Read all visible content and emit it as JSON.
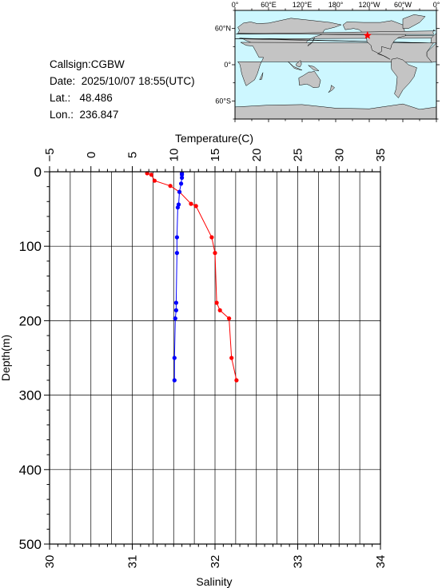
{
  "station": {
    "callsign_text": "Callsign:CGBW",
    "date_text": "Date:  2025/10/07 18:55(UTC)",
    "lat_text": "Lat.:   48.486",
    "lon_text": "Lon.:  236.847"
  },
  "map": {
    "top_lon_labels": [
      "0°",
      "60°E",
      "120°E",
      "180°",
      "120°W",
      "60°W",
      "0°"
    ],
    "left_lat_labels": [
      "60°N",
      "0°",
      "60°S"
    ],
    "ocean_color": "#cdf7ff",
    "land_color": "#c4c4c4",
    "marker": {
      "type": "red-star",
      "lon": 236.847,
      "lat": 48.486,
      "color": "#ff0000"
    }
  },
  "chart_data": {
    "type": "line",
    "title": "",
    "ylabel": "Depth(m)",
    "ylim": [
      0,
      500
    ],
    "y_inverted": true,
    "y_ticks": [
      0,
      100,
      200,
      300,
      400,
      500
    ],
    "y_tick_labels": [
      "0",
      "100",
      "200",
      "300",
      "400",
      "500"
    ],
    "grid": true,
    "top_axis": {
      "label": "Temperature(C)",
      "range": [
        -5,
        35
      ],
      "ticks": [
        -5,
        0,
        5,
        10,
        15,
        20,
        25,
        30,
        35
      ],
      "tick_labels": [
        "−5",
        "0",
        "5",
        "10",
        "15",
        "20",
        "25",
        "30",
        "35"
      ]
    },
    "bottom_axis": {
      "label": "Salinity",
      "range": [
        30,
        34
      ],
      "ticks": [
        30,
        31,
        32,
        33,
        34
      ],
      "tick_labels": [
        "30",
        "31",
        "32",
        "33",
        "34"
      ]
    },
    "series": [
      {
        "quantity": "temperature",
        "axis": "top",
        "color": "#ff0000",
        "depth": [
          2,
          4,
          12,
          19,
          27,
          43,
          46,
          88,
          109,
          176,
          186,
          197,
          250,
          280
        ],
        "values": [
          6.8,
          7.3,
          7.7,
          9.6,
          10.7,
          12.1,
          12.7,
          14.6,
          15.0,
          15.2,
          15.6,
          16.7,
          17.0,
          17.6
        ]
      },
      {
        "quantity": "salinity",
        "axis": "bottom",
        "color": "#0000ff",
        "depth": [
          2,
          4,
          8,
          16,
          27,
          44,
          48,
          88,
          109,
          176,
          186,
          197,
          250,
          280
        ],
        "values": [
          31.6,
          31.6,
          31.6,
          31.59,
          31.57,
          31.56,
          31.55,
          31.54,
          31.54,
          31.53,
          31.53,
          31.52,
          31.51,
          31.51
        ]
      }
    ]
  }
}
